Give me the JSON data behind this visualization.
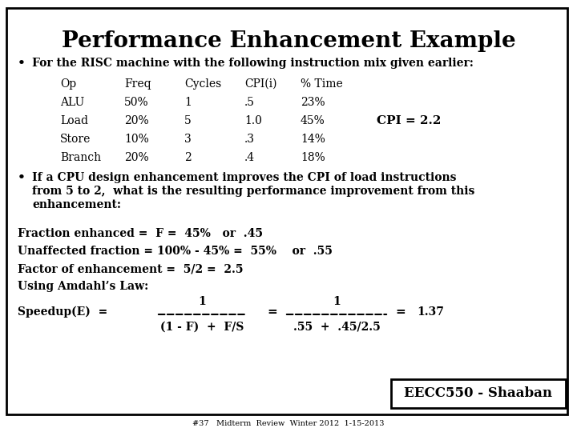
{
  "title": "Performance Enhancement Example",
  "background_color": "#ffffff",
  "border_color": "#000000",
  "title_fontsize": 20,
  "footer_text": "EECC550 - Shaaban",
  "footer_sub": "#37   Midterm  Review  Winter 2012  1-15-2013",
  "bullet1": "For the RISC machine with the following instruction mix given earlier:",
  "table_headers": [
    "Op",
    "Freq",
    "Cycles",
    "CPI(i)",
    "% Time"
  ],
  "table_rows": [
    [
      "ALU",
      "50%",
      "1",
      ".5",
      "23%"
    ],
    [
      "Load",
      "20%",
      "5",
      "1.0",
      "45%"
    ],
    [
      "Store",
      "10%",
      "3",
      ".3",
      "14%"
    ],
    [
      "Branch",
      "20%",
      "2",
      ".4",
      "18%"
    ]
  ],
  "cpi_label": "CPI = 2.2",
  "bullet2_lines": [
    "If a CPU design enhancement improves the CPI of load instructions",
    "from 5 to 2,  what is the resulting performance improvement from this",
    "enhancement:"
  ],
  "line1": "Fraction enhanced =  F =  45%   or  .45",
  "line2": "Unaffected fraction = 100% - 45% =  55%    or  .55",
  "line3": "Factor of enhancement =  5/2 =  2.5",
  "line4": "Using Amdahl’s Law:",
  "speedup_label": "Speedup(E)  =",
  "num1": "1",
  "num2": "1",
  "denom1": "(1 - F)  +  F/S",
  "denom2": ".55  +  .45/2.5",
  "result": "=   1.37"
}
